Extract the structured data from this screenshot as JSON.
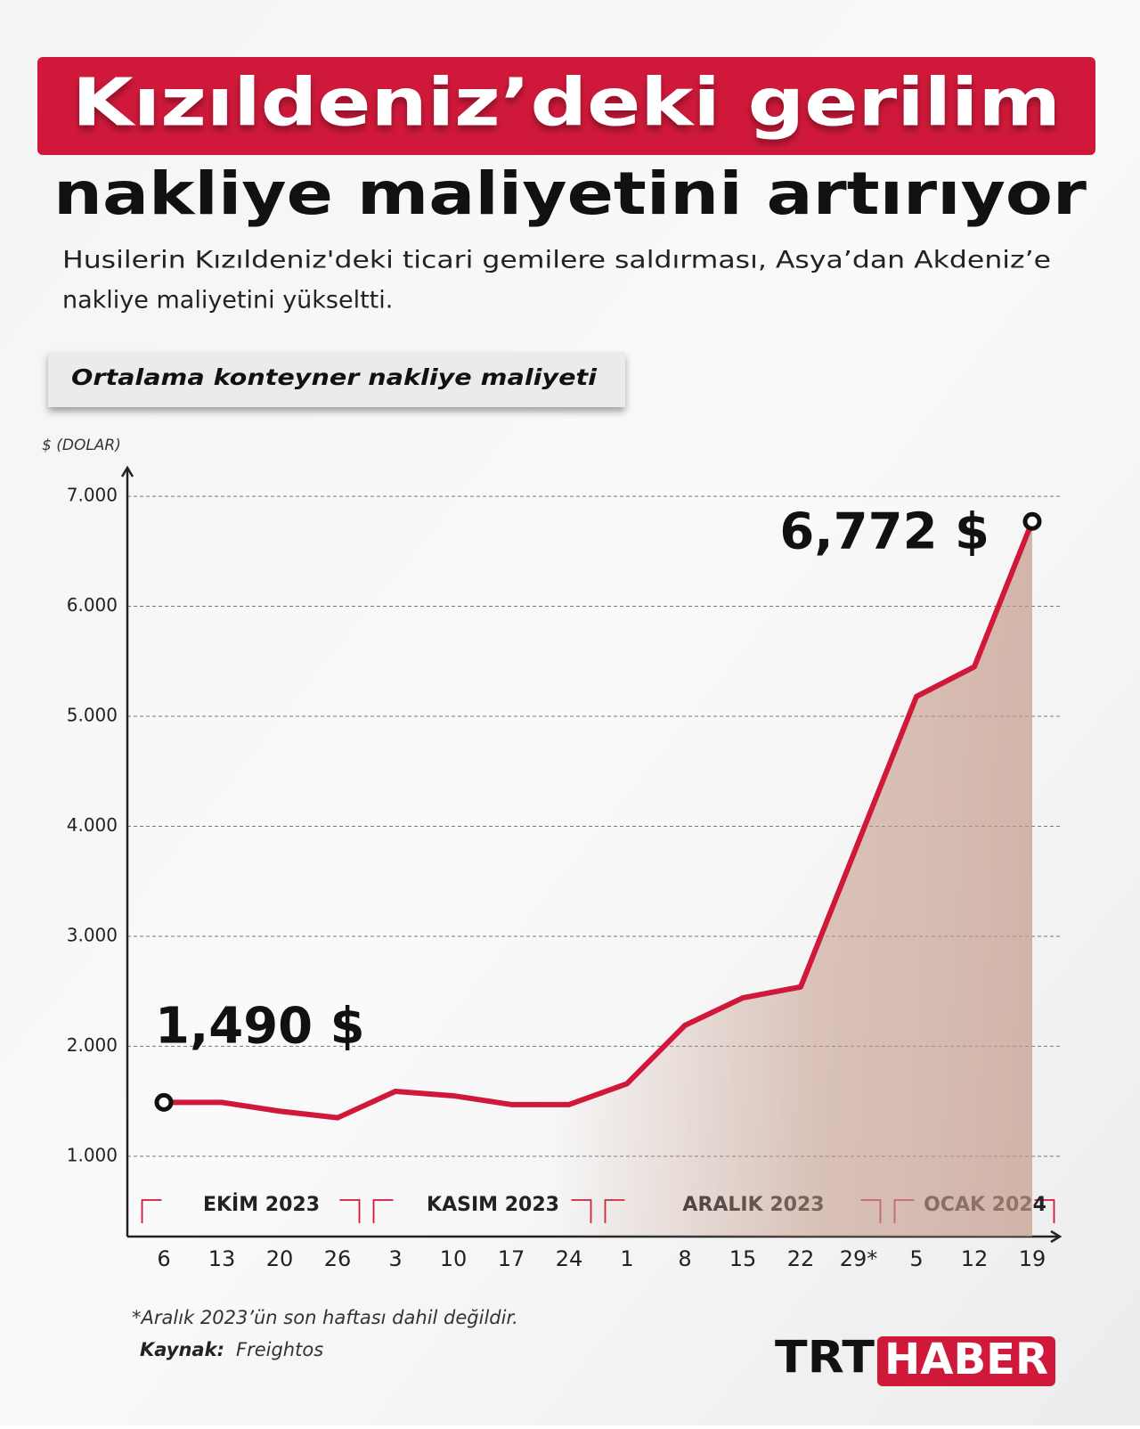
{
  "header": {
    "title_line1": "Kızıldeniz’deki gerilim",
    "title_line2": "nakliye maliyetini artırıyor",
    "subtitle_lines": [
      "Husilerin Kızıldeniz'deki ticari gemilere saldırması, Asya’dan Akdeniz’e",
      "nakliye maliyetini yükseltti."
    ]
  },
  "chart_data": {
    "type": "line",
    "title": "Ortalama konteyner nakliye maliyeti",
    "y_label": "$ (DOLAR)",
    "categories": [
      "6",
      "13",
      "20",
      "26",
      "3",
      "10",
      "17",
      "24",
      "1",
      "8",
      "15",
      "22",
      "29*",
      "5",
      "12",
      "19"
    ],
    "periods": [
      {
        "label": "EKİM 2023",
        "weeks": 4
      },
      {
        "label": "KASIM 2023",
        "weeks": 4
      },
      {
        "label": "ARALIK 2023",
        "weeks": 5
      },
      {
        "label": "OCAK 2024",
        "weeks": 3
      }
    ],
    "series": [
      {
        "name": "Ortalama konteyner nakliye maliyeti",
        "color": "#d0193a",
        "values": [
          1490,
          1490,
          1410,
          1350,
          1590,
          1550,
          1470,
          1470,
          1660,
          2190,
          2440,
          2540,
          3860,
          5180,
          5450,
          6772
        ],
        "value_labels": [
          "1,490 $",
          null,
          null,
          null,
          null,
          null,
          null,
          null,
          null,
          null,
          null,
          null,
          null,
          null,
          null,
          "6,772 $"
        ]
      }
    ],
    "ylim": [
      270,
      7260
    ],
    "yticks": [
      {
        "value": 1000,
        "label": "1.000"
      },
      {
        "value": 2000,
        "label": "2.000"
      },
      {
        "value": 3000,
        "label": "3.000"
      },
      {
        "value": 4000,
        "label": "4.000"
      },
      {
        "value": 5000,
        "label": "5.000"
      },
      {
        "value": 6000,
        "label": "6.000"
      },
      {
        "value": 7000,
        "label": "7.000"
      }
    ],
    "grid": true
  },
  "footer": {
    "note": "*Aralık 2023’ün son haftası dahil değildir.",
    "source_label": "Kaynak:",
    "source": "Freightos",
    "logo_left": "TRT",
    "logo_right": "HABER"
  }
}
